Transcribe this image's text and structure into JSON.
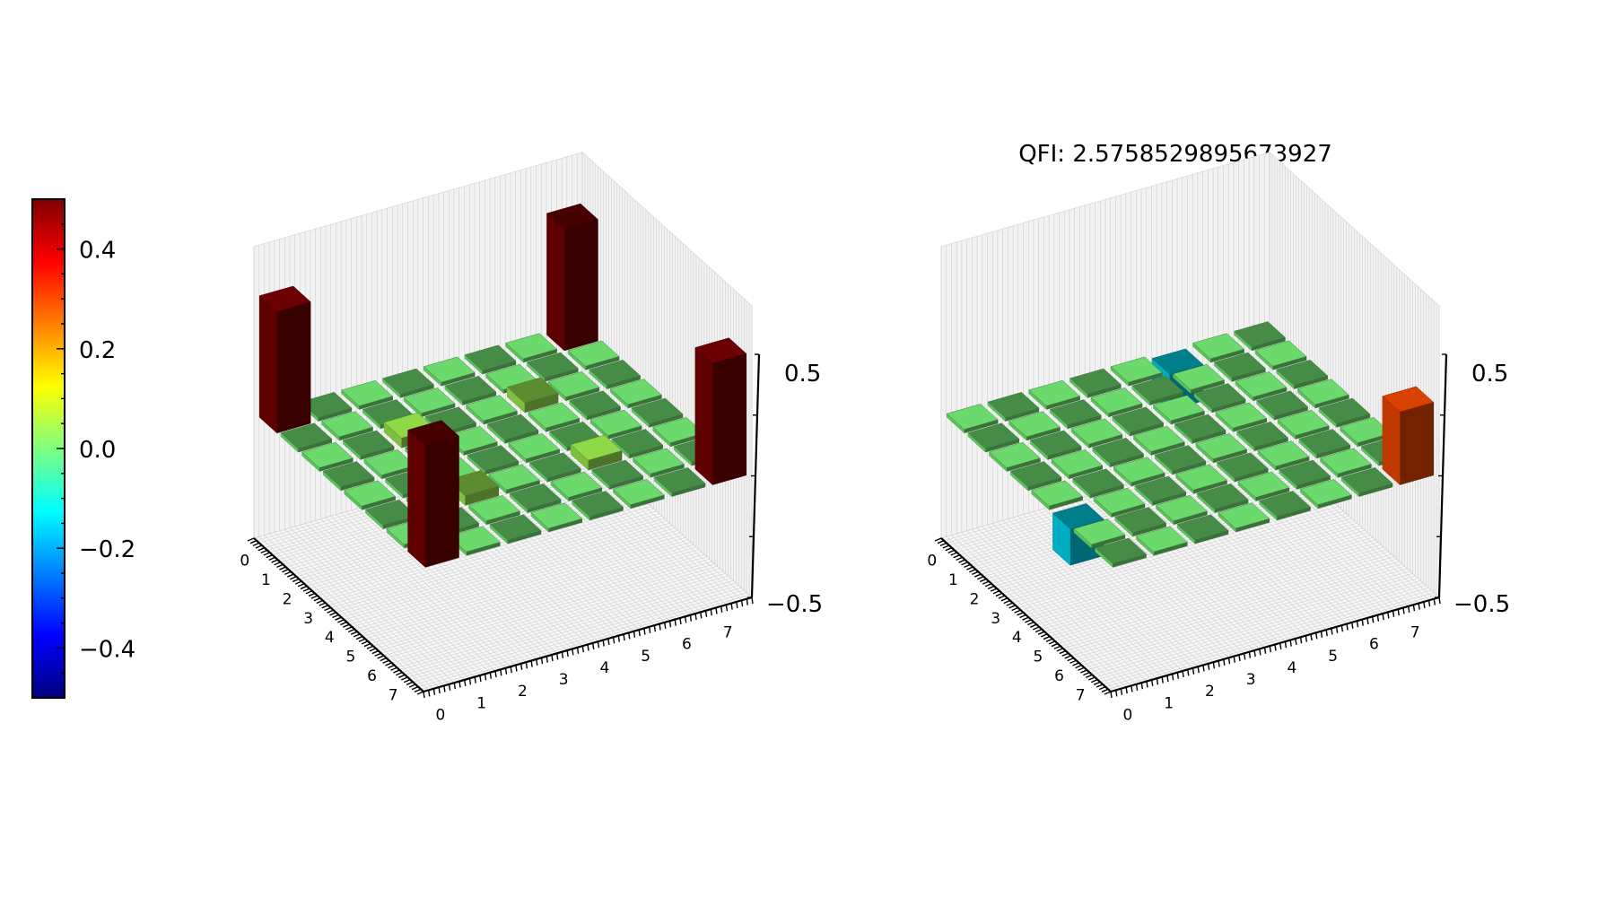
{
  "colormap": {
    "stops": [
      "#00007f",
      "#0000ff",
      "#007fff",
      "#00ffff",
      "#7fff7f",
      "#ffff00",
      "#ff7f00",
      "#ff0000",
      "#7f0000"
    ],
    "vmin": -0.5,
    "vmax": 0.5,
    "tick_labels": [
      "0.4",
      "0.2",
      "0.0",
      "−0.2",
      "−0.4"
    ],
    "tick_values": [
      0.4,
      0.2,
      0.0,
      -0.2,
      -0.4
    ]
  },
  "chart_data": [
    {
      "type": "bar3d",
      "title": "",
      "x_tick_labels": [
        "0",
        "1",
        "2",
        "3",
        "4",
        "5",
        "6",
        "7"
      ],
      "y_tick_labels": [
        "0",
        "1",
        "2",
        "3",
        "4",
        "5",
        "6",
        "7"
      ],
      "z_tick_labels": [
        "−0.5",
        "0.5"
      ],
      "zlim": [
        -0.5,
        0.5
      ],
      "values": [
        [
          0.5,
          0.0,
          0.0,
          0.0,
          0.0,
          0.0,
          0.0,
          0.5
        ],
        [
          0.0,
          0.0,
          0.0,
          0.0,
          0.0,
          0.0,
          0.0,
          0.0
        ],
        [
          0.0,
          0.0,
          0.04,
          0.0,
          0.0,
          0.04,
          0.0,
          0.0
        ],
        [
          0.0,
          0.0,
          0.0,
          0.0,
          0.0,
          0.0,
          0.0,
          0.0
        ],
        [
          0.0,
          0.0,
          0.0,
          0.0,
          0.0,
          0.0,
          0.0,
          0.0
        ],
        [
          0.0,
          0.0,
          0.04,
          0.0,
          0.0,
          0.04,
          0.0,
          0.0
        ],
        [
          0.0,
          0.0,
          0.0,
          0.0,
          0.0,
          0.0,
          0.0,
          0.0
        ],
        [
          0.5,
          0.0,
          0.0,
          0.0,
          0.0,
          0.0,
          0.0,
          0.5
        ]
      ]
    },
    {
      "type": "bar3d",
      "title": "QFI: 2.5758529895673927",
      "x_tick_labels": [
        "0",
        "1",
        "2",
        "3",
        "4",
        "5",
        "6",
        "7"
      ],
      "y_tick_labels": [
        "0",
        "1",
        "2",
        "3",
        "4",
        "5",
        "6",
        "7"
      ],
      "z_tick_labels": [
        "−0.5",
        "0.5"
      ],
      "zlim": [
        -0.5,
        0.5
      ],
      "values": [
        [
          0.0,
          0.0,
          0.0,
          0.0,
          0.0,
          -0.15,
          0.0,
          0.0
        ],
        [
          0.0,
          0.0,
          0.0,
          0.0,
          0.0,
          0.0,
          0.0,
          0.0
        ],
        [
          0.0,
          0.0,
          0.0,
          0.0,
          0.0,
          0.0,
          0.0,
          0.0
        ],
        [
          0.0,
          0.0,
          0.0,
          0.0,
          0.0,
          0.0,
          0.0,
          0.0
        ],
        [
          0.0,
          0.0,
          0.0,
          0.0,
          0.0,
          0.0,
          0.0,
          0.0
        ],
        [
          -0.15,
          0.0,
          0.0,
          0.0,
          0.0,
          0.0,
          0.0,
          0.0
        ],
        [
          0.0,
          0.0,
          0.0,
          0.0,
          0.0,
          0.0,
          0.0,
          0.0
        ],
        [
          0.0,
          0.0,
          0.0,
          0.0,
          0.0,
          0.0,
          0.0,
          0.3
        ]
      ]
    }
  ]
}
